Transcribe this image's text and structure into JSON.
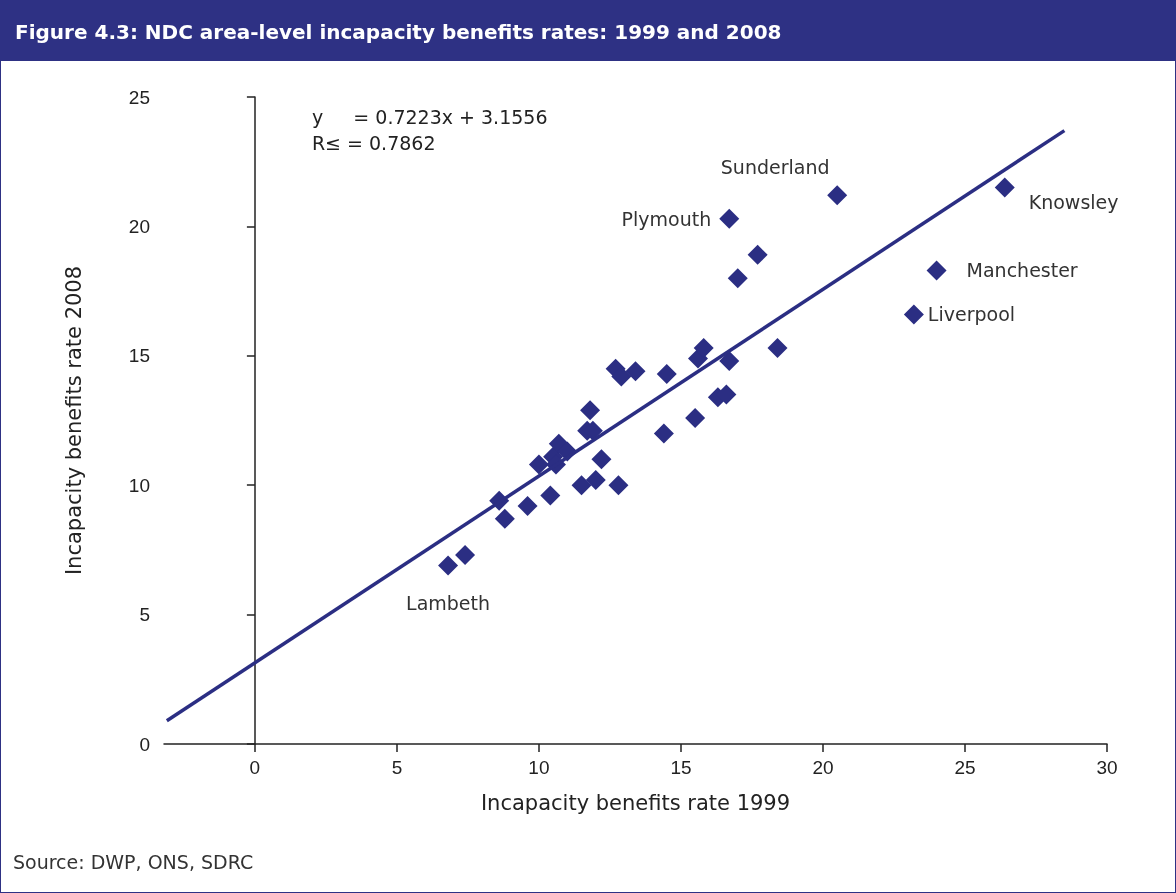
{
  "chart_data": {
    "type": "scatter",
    "title": "Figure 4.3: NDC area-level incapacity benefits rates: 1999 and 2008",
    "xlabel": "Incapacity benefits rate 1999",
    "ylabel": "Incapacity benefits rate 2008",
    "x": [
      6.8,
      7.4,
      8.6,
      8.8,
      9.6,
      10.0,
      10.4,
      10.5,
      10.6,
      10.7,
      11.0,
      11.5,
      11.8,
      11.7,
      11.9,
      12.0,
      12.2,
      12.8,
      12.7,
      12.9,
      13.4,
      14.4,
      14.5,
      15.5,
      15.6,
      15.8,
      16.3,
      16.6,
      16.7,
      16.7,
      17.0,
      17.7,
      18.4,
      20.5,
      23.2,
      24.0,
      26.4
    ],
    "series": [
      {
        "color": "#2b2e83",
        "marker": "diamond",
        "values": [
          6.9,
          7.3,
          9.4,
          8.7,
          9.2,
          10.8,
          9.6,
          11.1,
          10.8,
          11.6,
          11.3,
          10.0,
          12.9,
          12.1,
          12.1,
          10.2,
          11.0,
          10.0,
          14.5,
          14.2,
          14.4,
          12.0,
          14.3,
          12.6,
          14.9,
          15.3,
          13.4,
          13.5,
          14.8,
          20.3,
          18.0,
          18.9,
          15.3,
          21.2,
          16.6,
          18.3,
          21.5
        ]
      },
      {
        "type": "line",
        "color": "#2b2e83",
        "marker": "none",
        "line_style": "solid",
        "x": [
          -3.1,
          28.5
        ],
        "values": [
          0.9,
          23.7
        ]
      }
    ],
    "xlim": [
      -3.2,
      30
    ],
    "xticks": [
      0,
      5,
      10,
      15,
      20,
      25,
      30
    ],
    "ylim": [
      0,
      25
    ],
    "yticks": [
      0,
      5,
      10,
      15,
      20,
      25
    ],
    "annotations": [
      "y     = 0.7223x + 3.1556",
      "R≤ = 0.7862",
      {
        "text": "Lambeth",
        "x": 6.8,
        "y": 6.9
      },
      {
        "text": "Sunderland",
        "x": 20.5,
        "y": 21.2
      },
      {
        "text": "Plymouth",
        "x": 16.7,
        "y": 20.3
      },
      {
        "text": "Knowsley",
        "x": 26.4,
        "y": 21.5
      },
      {
        "text": "Manchester",
        "x": 24.0,
        "y": 18.3
      },
      {
        "text": "Liverpool",
        "x": 23.2,
        "y": 16.6
      },
      "Source: DWP, ONS, SDRC"
    ]
  }
}
